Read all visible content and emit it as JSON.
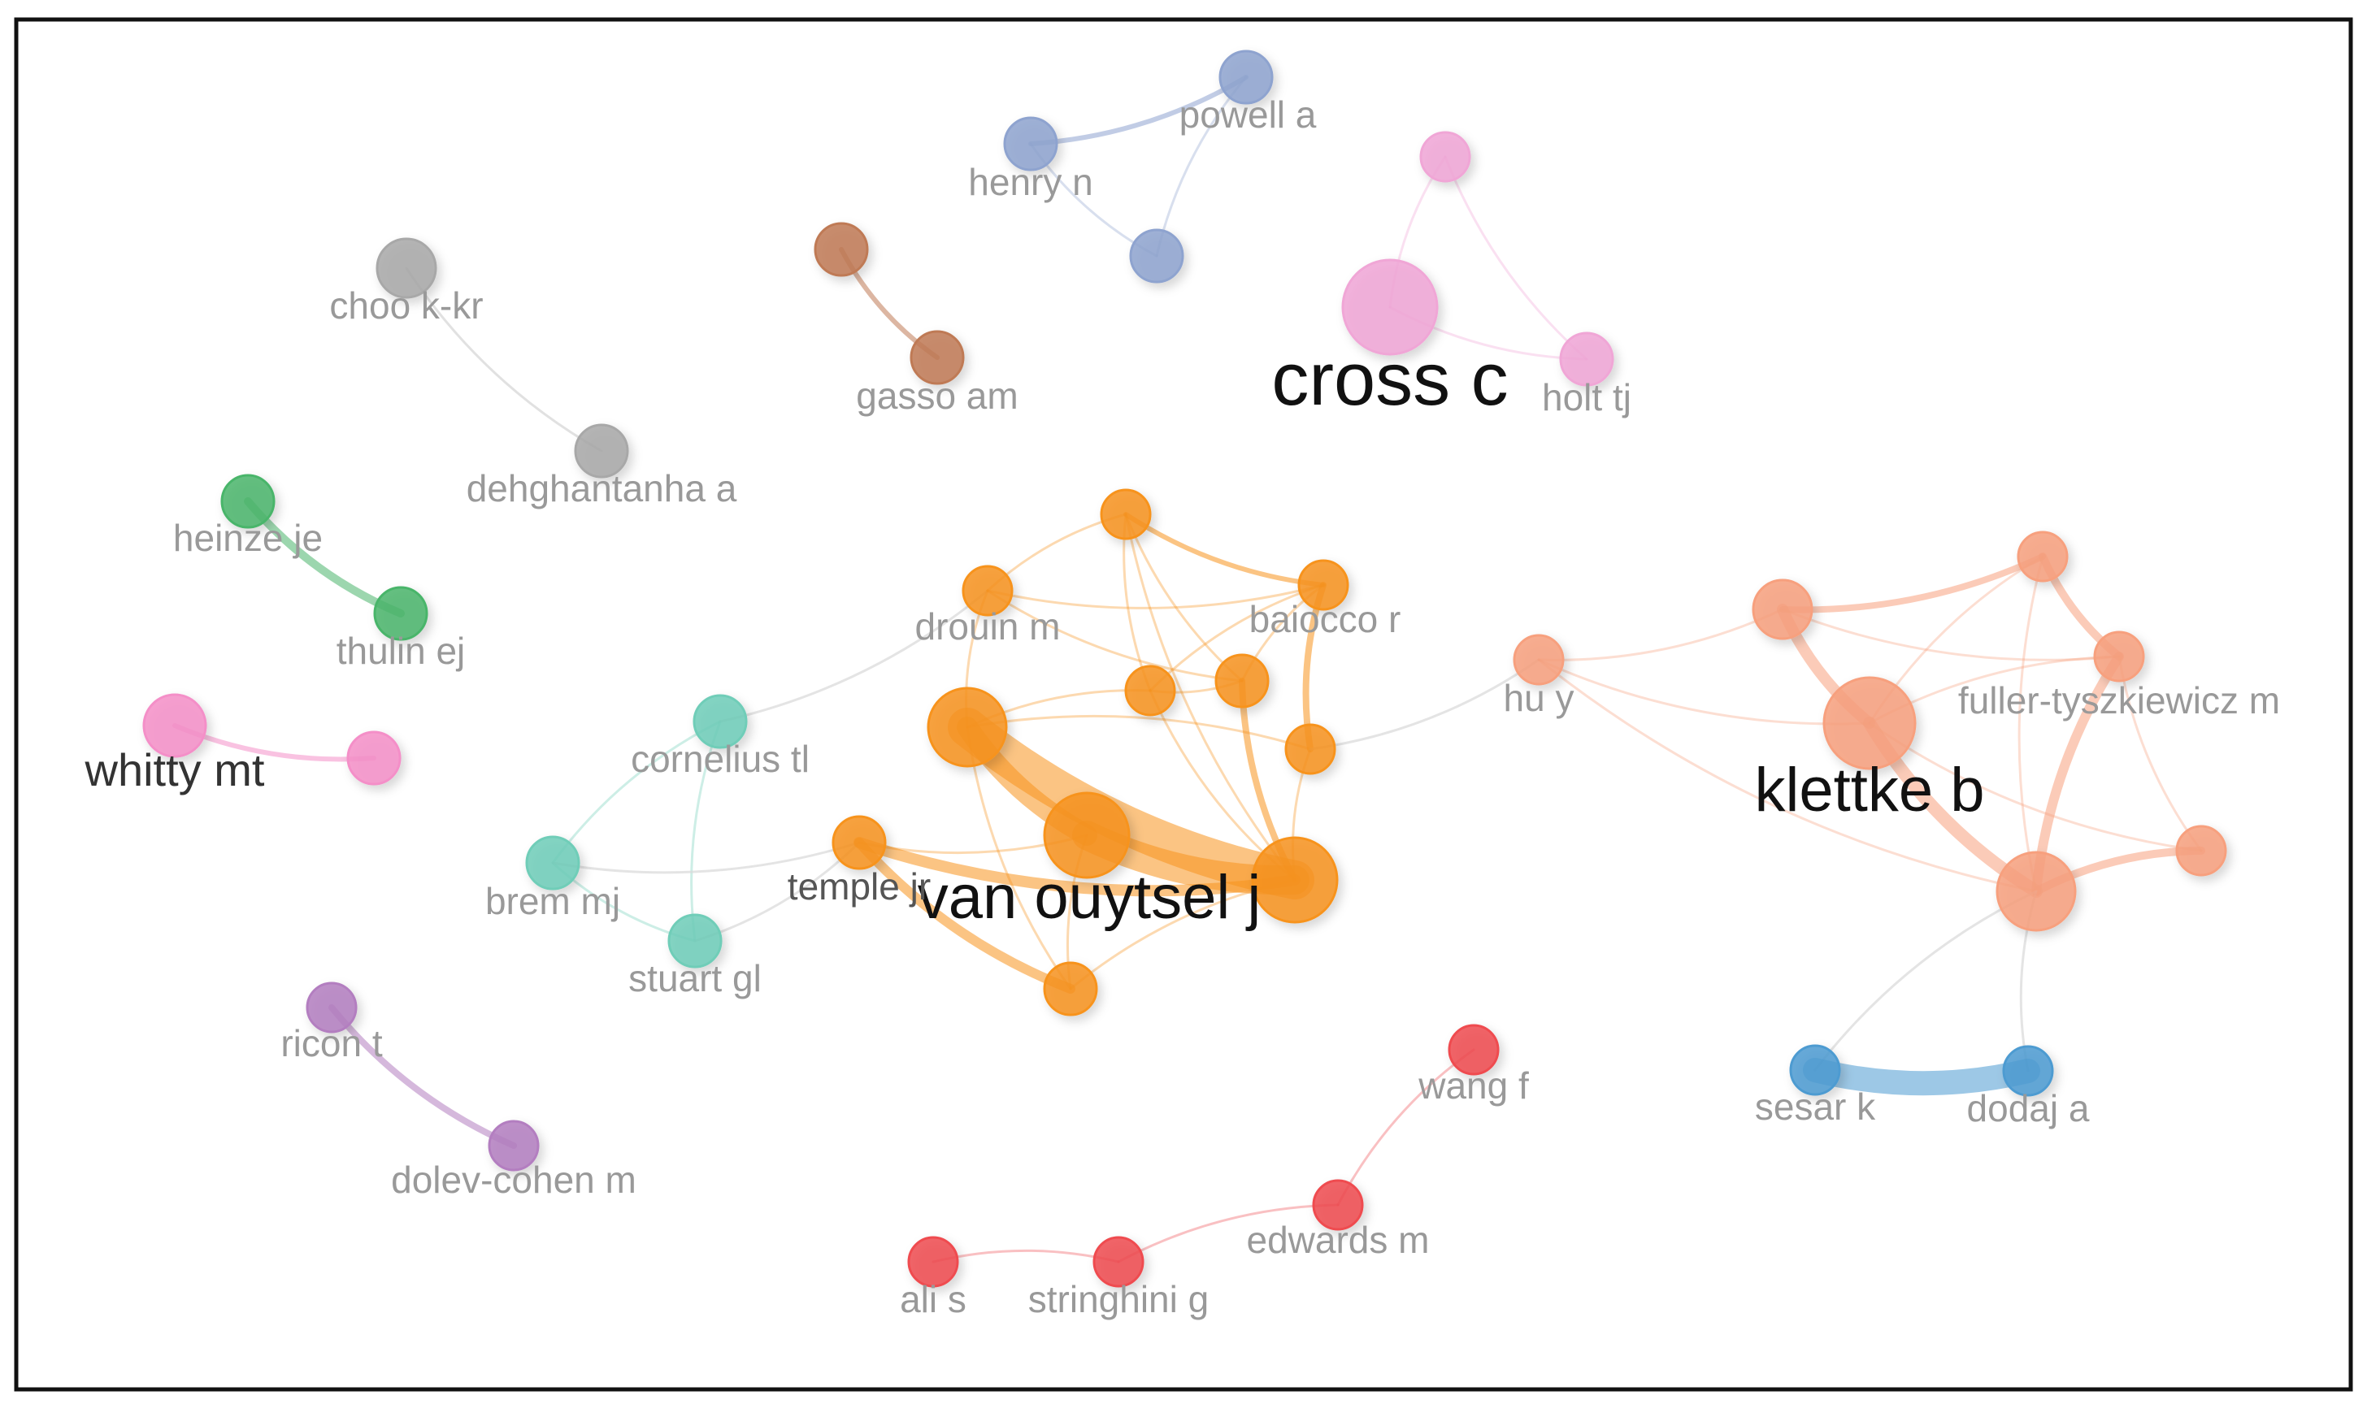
{
  "clusters": {
    "gray": {
      "color": "#a8a8a8"
    },
    "brown": {
      "color": "#bf7a55"
    },
    "blue": {
      "color": "#8ea3cf"
    },
    "pink": {
      "color": "#f0a6d6"
    },
    "green": {
      "color": "#4ab56b"
    },
    "teal": {
      "color": "#6fcdb8"
    },
    "orange": {
      "color": "#f7931e"
    },
    "salmon": {
      "color": "#f7a07e"
    },
    "steel": {
      "color": "#4d9bd1"
    },
    "purple": {
      "color": "#b37ec0"
    },
    "red": {
      "color": "#ef4b50"
    },
    "hotpink": {
      "color": "#f48fc8"
    }
  },
  "nodes": [
    {
      "id": "choo",
      "label": "choo k-kr",
      "cluster": "gray"
    },
    {
      "id": "dehgh",
      "label": "dehghantanha a",
      "cluster": "gray"
    },
    {
      "id": "gasso1",
      "label": "",
      "cluster": "brown"
    },
    {
      "id": "gasso",
      "label": "gasso am",
      "cluster": "brown"
    },
    {
      "id": "henry",
      "label": "henry n",
      "cluster": "blue"
    },
    {
      "id": "powell",
      "label": "powell a",
      "cluster": "blue"
    },
    {
      "id": "blue3",
      "label": "",
      "cluster": "blue"
    },
    {
      "id": "pinktop",
      "label": "",
      "cluster": "pink"
    },
    {
      "id": "cross",
      "label": "cross c",
      "cluster": "pink"
    },
    {
      "id": "holt",
      "label": "holt tj",
      "cluster": "pink"
    },
    {
      "id": "heinze",
      "label": "heinze je",
      "cluster": "green"
    },
    {
      "id": "thulin",
      "label": "thulin ej",
      "cluster": "green"
    },
    {
      "id": "whitty",
      "label": "whitty mt",
      "cluster": "hotpink"
    },
    {
      "id": "whitty2",
      "label": "",
      "cluster": "hotpink"
    },
    {
      "id": "cornelius",
      "label": "cornelius tl",
      "cluster": "teal"
    },
    {
      "id": "brem",
      "label": "brem mj",
      "cluster": "teal"
    },
    {
      "id": "stuart",
      "label": "stuart gl",
      "cluster": "teal"
    },
    {
      "id": "o_top",
      "label": "",
      "cluster": "orange"
    },
    {
      "id": "drouin",
      "label": "drouin m",
      "cluster": "orange"
    },
    {
      "id": "baiocco",
      "label": "baiocco r",
      "cluster": "orange"
    },
    {
      "id": "o_mid1",
      "label": "",
      "cluster": "orange"
    },
    {
      "id": "o_mid2",
      "label": "",
      "cluster": "orange"
    },
    {
      "id": "o_right",
      "label": "",
      "cluster": "orange"
    },
    {
      "id": "o_big1",
      "label": "",
      "cluster": "orange"
    },
    {
      "id": "vanouytsel",
      "label": "van ouytsel j",
      "cluster": "orange"
    },
    {
      "id": "o_big2",
      "label": "",
      "cluster": "orange"
    },
    {
      "id": "temple",
      "label": "temple jr",
      "cluster": "orange"
    },
    {
      "id": "o_bottom",
      "label": "",
      "cluster": "orange"
    },
    {
      "id": "huy",
      "label": "hu y",
      "cluster": "salmon"
    },
    {
      "id": "s_left",
      "label": "",
      "cluster": "salmon"
    },
    {
      "id": "s_top",
      "label": "",
      "cluster": "salmon"
    },
    {
      "id": "fuller",
      "label": "fuller-tyszkiewicz m",
      "cluster": "salmon"
    },
    {
      "id": "klettke",
      "label": "klettke b",
      "cluster": "salmon"
    },
    {
      "id": "s_right",
      "label": "",
      "cluster": "salmon"
    },
    {
      "id": "s_big",
      "label": "",
      "cluster": "salmon"
    },
    {
      "id": "sesar",
      "label": "sesar k",
      "cluster": "steel"
    },
    {
      "id": "dodaj",
      "label": "dodaj a",
      "cluster": "steel"
    },
    {
      "id": "ricon",
      "label": "ricon t",
      "cluster": "purple"
    },
    {
      "id": "dolev",
      "label": "dolev-cohen m",
      "cluster": "purple"
    },
    {
      "id": "wang",
      "label": "wang f",
      "cluster": "red"
    },
    {
      "id": "edwards",
      "label": "edwards m",
      "cluster": "red"
    },
    {
      "id": "stringhini",
      "label": "stringhini g",
      "cluster": "red"
    },
    {
      "id": "alis",
      "label": "ali s",
      "cluster": "red"
    }
  ],
  "edges": [
    [
      "choo",
      "dehgh"
    ],
    [
      "gasso1",
      "gasso"
    ],
    [
      "henry",
      "powell"
    ],
    [
      "henry",
      "blue3"
    ],
    [
      "powell",
      "blue3"
    ],
    [
      "pinktop",
      "cross"
    ],
    [
      "pinktop",
      "holt"
    ],
    [
      "cross",
      "holt"
    ],
    [
      "heinze",
      "thulin"
    ],
    [
      "whitty",
      "whitty2"
    ],
    [
      "cornelius",
      "brem"
    ],
    [
      "cornelius",
      "stuart"
    ],
    [
      "brem",
      "stuart"
    ],
    [
      "cornelius",
      "drouin"
    ],
    [
      "brem",
      "temple"
    ],
    [
      "stuart",
      "temple"
    ],
    [
      "o_top",
      "drouin"
    ],
    [
      "o_top",
      "baiocco"
    ],
    [
      "o_top",
      "o_mid1"
    ],
    [
      "o_top",
      "o_mid2"
    ],
    [
      "o_top",
      "o_big2"
    ],
    [
      "drouin",
      "o_big1"
    ],
    [
      "drouin",
      "baiocco"
    ],
    [
      "drouin",
      "o_mid2"
    ],
    [
      "baiocco",
      "o_mid1"
    ],
    [
      "baiocco",
      "o_mid2"
    ],
    [
      "baiocco",
      "o_right"
    ],
    [
      "o_mid1",
      "o_mid2"
    ],
    [
      "o_mid1",
      "o_big1"
    ],
    [
      "o_mid1",
      "o_big2"
    ],
    [
      "o_mid2",
      "o_big2"
    ],
    [
      "o_right",
      "o_big2"
    ],
    [
      "o_right",
      "o_big1"
    ],
    [
      "o_big1",
      "vanouytsel"
    ],
    [
      "o_big1",
      "o_big2"
    ],
    [
      "vanouytsel",
      "o_big2"
    ],
    [
      "temple",
      "o_big2"
    ],
    [
      "temple",
      "vanouytsel"
    ],
    [
      "temple",
      "o_bottom"
    ],
    [
      "o_big1",
      "o_bottom"
    ],
    [
      "vanouytsel",
      "o_bottom"
    ],
    [
      "o_big2",
      "o_bottom"
    ],
    [
      "o_right",
      "huy"
    ],
    [
      "huy",
      "s_left"
    ],
    [
      "huy",
      "klettke"
    ],
    [
      "huy",
      "s_big"
    ],
    [
      "s_left",
      "s_top"
    ],
    [
      "s_left",
      "klettke"
    ],
    [
      "s_left",
      "fuller"
    ],
    [
      "s_top",
      "klettke"
    ],
    [
      "s_top",
      "fuller"
    ],
    [
      "s_top",
      "s_big"
    ],
    [
      "fuller",
      "klettke"
    ],
    [
      "fuller",
      "s_right"
    ],
    [
      "fuller",
      "s_big"
    ],
    [
      "klettke",
      "s_big"
    ],
    [
      "klettke",
      "s_right"
    ],
    [
      "s_right",
      "s_big"
    ],
    [
      "s_big",
      "sesar"
    ],
    [
      "s_big",
      "dodaj"
    ],
    [
      "sesar",
      "dodaj"
    ],
    [
      "ricon",
      "dolev"
    ],
    [
      "wang",
      "edwards"
    ],
    [
      "edwards",
      "stringhini"
    ],
    [
      "stringhini",
      "alis"
    ]
  ]
}
